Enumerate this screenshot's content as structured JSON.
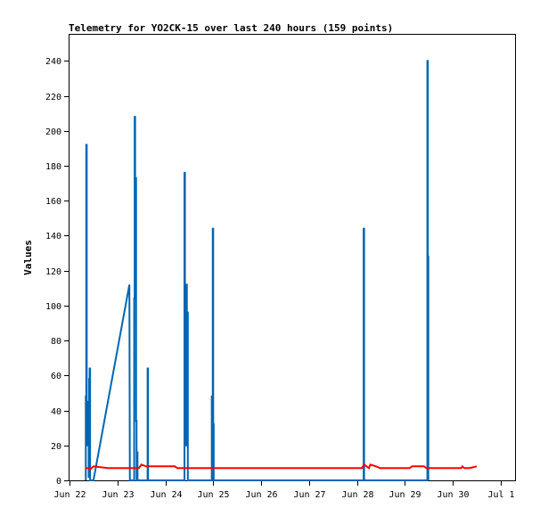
{
  "chart_data": {
    "type": "line",
    "title": "Telemetry for YO2CK-15 over last 240 hours (159 points)",
    "xlabel": "",
    "ylabel": "Values",
    "xlim": [
      0,
      9.3
    ],
    "ylim": [
      0,
      255
    ],
    "x_ticks": [
      {
        "x": 0,
        "label": "Jun 22"
      },
      {
        "x": 1,
        "label": "Jun 23"
      },
      {
        "x": 2,
        "label": "Jun 24"
      },
      {
        "x": 3,
        "label": "Jun 25"
      },
      {
        "x": 4,
        "label": "Jun 26"
      },
      {
        "x": 5,
        "label": "Jun 27"
      },
      {
        "x": 6,
        "label": "Jun 28"
      },
      {
        "x": 7,
        "label": "Jun 29"
      },
      {
        "x": 8,
        "label": "Jun 30"
      },
      {
        "x": 9,
        "label": "Jul 1"
      }
    ],
    "y_ticks": [
      0,
      20,
      40,
      60,
      80,
      100,
      120,
      140,
      160,
      180,
      200,
      220,
      240
    ],
    "grid": false,
    "series": [
      {
        "name": "",
        "color": "#0066b3",
        "points": [
          [
            0.34,
            0
          ],
          [
            0.34,
            48
          ],
          [
            0.35,
            48
          ],
          [
            0.35,
            192
          ],
          [
            0.36,
            192
          ],
          [
            0.36,
            30
          ],
          [
            0.37,
            30
          ],
          [
            0.37,
            20
          ],
          [
            0.38,
            20
          ],
          [
            0.38,
            32
          ],
          [
            0.39,
            32
          ],
          [
            0.39,
            45
          ],
          [
            0.4,
            45
          ],
          [
            0.4,
            2
          ],
          [
            0.41,
            2
          ],
          [
            0.41,
            58
          ],
          [
            0.42,
            58
          ],
          [
            0.42,
            64
          ],
          [
            0.43,
            64
          ],
          [
            0.43,
            0
          ],
          [
            0.5,
            0
          ],
          [
            1.25,
            112
          ],
          [
            1.26,
            0
          ],
          [
            1.35,
            0
          ],
          [
            1.35,
            104
          ],
          [
            1.36,
            104
          ],
          [
            1.36,
            208
          ],
          [
            1.37,
            208
          ],
          [
            1.37,
            104
          ],
          [
            1.38,
            104
          ],
          [
            1.38,
            173
          ],
          [
            1.39,
            173
          ],
          [
            1.39,
            34
          ],
          [
            1.4,
            34
          ],
          [
            1.4,
            0
          ],
          [
            1.41,
            0
          ],
          [
            1.41,
            16
          ],
          [
            1.42,
            16
          ],
          [
            1.42,
            0
          ],
          [
            1.63,
            0
          ],
          [
            1.63,
            64
          ],
          [
            1.64,
            64
          ],
          [
            1.64,
            0
          ],
          [
            2.4,
            0
          ],
          [
            2.4,
            176
          ],
          [
            2.41,
            176
          ],
          [
            2.41,
            20
          ],
          [
            2.42,
            20
          ],
          [
            2.42,
            92
          ],
          [
            2.43,
            92
          ],
          [
            2.43,
            30
          ],
          [
            2.44,
            30
          ],
          [
            2.44,
            112
          ],
          [
            2.45,
            112
          ],
          [
            2.45,
            20
          ],
          [
            2.46,
            20
          ],
          [
            2.46,
            96
          ],
          [
            2.47,
            96
          ],
          [
            2.47,
            0
          ],
          [
            2.97,
            0
          ],
          [
            2.97,
            48
          ],
          [
            2.98,
            48
          ],
          [
            2.98,
            0
          ],
          [
            2.99,
            0
          ],
          [
            2.99,
            144
          ],
          [
            3.0,
            144
          ],
          [
            3.0,
            32
          ],
          [
            3.01,
            32
          ],
          [
            3.01,
            0
          ],
          [
            6.14,
            0
          ],
          [
            6.14,
            144
          ],
          [
            6.15,
            144
          ],
          [
            6.15,
            0
          ],
          [
            7.47,
            0
          ],
          [
            7.47,
            240
          ],
          [
            7.48,
            240
          ],
          [
            7.48,
            128
          ],
          [
            7.49,
            128
          ],
          [
            7.49,
            0
          ]
        ]
      },
      {
        "name": "",
        "color": "#ff0000",
        "points": [
          [
            0.33,
            7
          ],
          [
            0.4,
            7
          ],
          [
            0.42,
            6
          ],
          [
            0.5,
            8
          ],
          [
            0.8,
            7
          ],
          [
            1.1,
            7
          ],
          [
            1.35,
            7
          ],
          [
            1.45,
            7
          ],
          [
            1.5,
            9
          ],
          [
            1.6,
            8
          ],
          [
            2.2,
            8
          ],
          [
            2.25,
            7
          ],
          [
            3.0,
            7
          ],
          [
            6.1,
            7
          ],
          [
            6.15,
            9
          ],
          [
            6.25,
            7
          ],
          [
            6.28,
            9
          ],
          [
            6.4,
            8
          ],
          [
            6.48,
            7
          ],
          [
            7.1,
            7
          ],
          [
            7.15,
            8
          ],
          [
            7.4,
            8
          ],
          [
            7.45,
            7
          ],
          [
            8.18,
            7
          ],
          [
            8.2,
            8
          ],
          [
            8.24,
            7
          ],
          [
            8.35,
            7
          ],
          [
            8.5,
            8
          ]
        ]
      }
    ]
  }
}
